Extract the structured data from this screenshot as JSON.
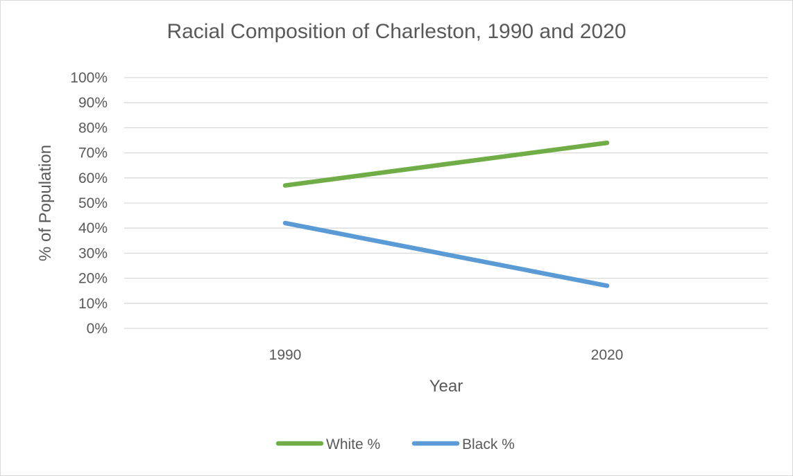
{
  "chart_data": {
    "type": "line",
    "title": "Racial Composition of Charleston, 1990 and 2020",
    "xlabel": "Year",
    "ylabel": "% of Population",
    "categories": [
      "1990",
      "2020"
    ],
    "series": [
      {
        "name": "White %",
        "values": [
          57,
          74
        ],
        "color": "#70ad47"
      },
      {
        "name": "Black %",
        "values": [
          42,
          17
        ],
        "color": "#5b9bd5"
      }
    ],
    "ylim": [
      0,
      100
    ],
    "yticks": [
      0,
      10,
      20,
      30,
      40,
      50,
      60,
      70,
      80,
      90,
      100
    ],
    "ytick_labels": [
      "0%",
      "10%",
      "20%",
      "30%",
      "40%",
      "50%",
      "60%",
      "70%",
      "80%",
      "90%",
      "100%"
    ],
    "grid": true,
    "legend": "bottom"
  }
}
